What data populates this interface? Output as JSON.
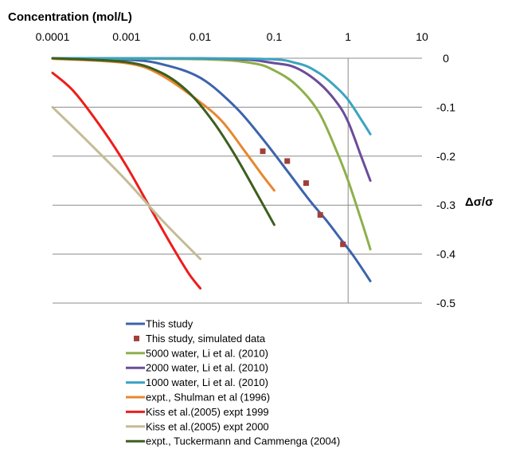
{
  "chart_data": {
    "type": "line",
    "title": "",
    "xlabel": "Concentration (mol/L)",
    "ylabel": "Δσ/σ",
    "x_scale": "log",
    "xlim": [
      0.0001,
      10
    ],
    "ylim": [
      -0.5,
      0
    ],
    "x_ticks": [
      "0.0001",
      "0.001",
      "0.01",
      "0.1",
      "1",
      "10"
    ],
    "y_ticks": [
      "0",
      "-0.1",
      "-0.2",
      "-0.3",
      "-0.4",
      "-0.5"
    ],
    "x_axis_position": "top",
    "y_axis_position": "right",
    "grid": "horizontal",
    "legend_position": "bottom",
    "series": [
      {
        "name": "This study",
        "kind": "line",
        "color": "#3c64ac",
        "x": [
          0.0001,
          0.001,
          0.003,
          0.01,
          0.03,
          0.07,
          0.15,
          0.3,
          0.5,
          0.8,
          1.2,
          2.0
        ],
        "y": [
          0,
          -0.003,
          -0.012,
          -0.04,
          -0.1,
          -0.165,
          -0.23,
          -0.29,
          -0.33,
          -0.37,
          -0.405,
          -0.455
        ]
      },
      {
        "name": "This study, simulated data",
        "kind": "marker",
        "color": "#a0403c",
        "x": [
          0.07,
          0.15,
          0.27,
          0.42,
          0.85
        ],
        "y": [
          -0.19,
          -0.21,
          -0.255,
          -0.32,
          -0.38
        ]
      },
      {
        "name": "5000 water, Li et al. (2010)",
        "kind": "line",
        "color": "#8db04a",
        "x": [
          0.0001,
          0.01,
          0.05,
          0.1,
          0.2,
          0.4,
          0.7,
          1.0,
          1.5,
          2.0
        ],
        "y": [
          0,
          -0.002,
          -0.01,
          -0.025,
          -0.055,
          -0.11,
          -0.19,
          -0.25,
          -0.33,
          -0.39
        ]
      },
      {
        "name": "2000 water, Li et al. (2010)",
        "kind": "line",
        "color": "#6b4c9a",
        "x": [
          0.0001,
          0.02,
          0.1,
          0.2,
          0.4,
          0.7,
          1.0,
          1.5,
          2.0
        ],
        "y": [
          0,
          -0.001,
          -0.01,
          -0.02,
          -0.05,
          -0.09,
          -0.13,
          -0.2,
          -0.25
        ]
      },
      {
        "name": "1000 water, Li et al. (2010)",
        "kind": "line",
        "color": "#3ba3c1",
        "x": [
          0.0001,
          0.05,
          0.2,
          0.4,
          0.7,
          1.0,
          1.5,
          2.0
        ],
        "y": [
          0,
          -0.001,
          -0.01,
          -0.03,
          -0.06,
          -0.085,
          -0.125,
          -0.155
        ]
      },
      {
        "name": "expt., Shulman et al (1996)",
        "kind": "line",
        "color": "#e7872f",
        "x": [
          0.0001,
          0.001,
          0.003,
          0.01,
          0.02,
          0.04,
          0.07,
          0.1
        ],
        "y": [
          -0.001,
          -0.01,
          -0.035,
          -0.09,
          -0.13,
          -0.19,
          -0.24,
          -0.27
        ]
      },
      {
        "name": "Kiss et al.(2005) expt 1999",
        "kind": "line",
        "color": "#ee1c1c",
        "x": [
          0.0001,
          0.0002,
          0.0005,
          0.001,
          0.002,
          0.004,
          0.007,
          0.01
        ],
        "y": [
          -0.03,
          -0.07,
          -0.15,
          -0.22,
          -0.3,
          -0.38,
          -0.44,
          -0.47
        ]
      },
      {
        "name": "Kiss et al.(2005) expt 2000",
        "kind": "line",
        "color": "#c4bc96",
        "x": [
          0.0001,
          0.0003,
          0.001,
          0.003,
          0.01
        ],
        "y": [
          -0.1,
          -0.17,
          -0.25,
          -0.33,
          -0.41
        ]
      },
      {
        "name": "expt., Tuckermann and Cammenga (2004)",
        "kind": "line",
        "color": "#3d5f1f",
        "x": [
          0.0001,
          0.001,
          0.003,
          0.007,
          0.015,
          0.03,
          0.06,
          0.1
        ],
        "y": [
          0,
          -0.008,
          -0.03,
          -0.07,
          -0.13,
          -0.2,
          -0.28,
          -0.34
        ]
      }
    ]
  }
}
